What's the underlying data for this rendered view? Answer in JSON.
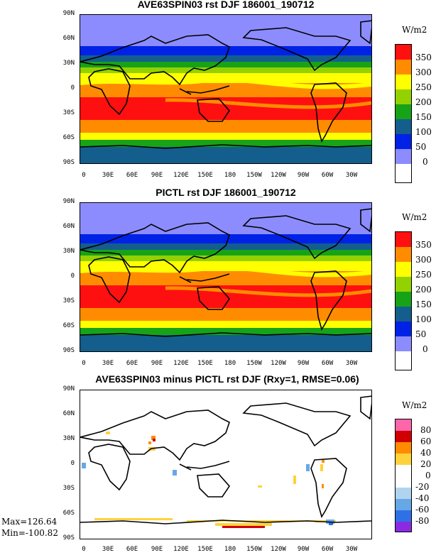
{
  "panels": [
    {
      "title": "AVE63SPIN03 rst DJF 186001_190712",
      "units": "W/m2",
      "lat_labels": [
        "90N",
        "60N",
        "30N",
        "0",
        "30S",
        "60S",
        "90S"
      ],
      "lon_labels": [
        "0",
        "30E",
        "60E",
        "90E",
        "120E",
        "150E",
        "180",
        "150W",
        "120W",
        "90W",
        "60W",
        "30W"
      ],
      "legend": {
        "labels": [
          "350",
          "300",
          "250",
          "200",
          "150",
          "100",
          "50",
          "0"
        ],
        "colors": [
          "#ffffff",
          "#8c8cff",
          "#0022e6",
          "#135e8c",
          "#17a317",
          "#93d200",
          "#ffff00",
          "#ff8c00",
          "#ff1010"
        ]
      }
    },
    {
      "title": "PICTL rst DJF 186001_190712",
      "units": "W/m2",
      "lat_labels": [
        "90N",
        "60N",
        "30N",
        "0",
        "30S",
        "60S",
        "90S"
      ],
      "lon_labels": [
        "0",
        "30E",
        "60E",
        "90E",
        "120E",
        "150E",
        "180",
        "150W",
        "120W",
        "90W",
        "60W",
        "30W"
      ],
      "legend": {
        "labels": [
          "350",
          "300",
          "250",
          "200",
          "150",
          "100",
          "50",
          "0"
        ],
        "colors": [
          "#ffffff",
          "#8c8cff",
          "#0022e6",
          "#135e8c",
          "#17a317",
          "#93d200",
          "#ffff00",
          "#ff8c00",
          "#ff1010"
        ]
      }
    },
    {
      "title": "AVE63SPIN03 minus PICTL rst DJF (Rxy=1, RMSE=0.06)",
      "units": "W/m2",
      "lat_labels": [
        "90N",
        "60N",
        "30N",
        "0",
        "30S",
        "60S",
        "90S"
      ],
      "lon_labels": [
        "0",
        "30E",
        "60E",
        "90E",
        "120E",
        "150E",
        "180",
        "150W",
        "120W",
        "90W",
        "60W",
        "30W"
      ],
      "legend": {
        "labels": [
          "80",
          "60",
          "40",
          "20",
          "0",
          "-20",
          "-40",
          "-60",
          "-80"
        ],
        "colors": [
          "#8a2be2",
          "#3070e6",
          "#66a8e6",
          "#b0d4f0",
          "#ffffff",
          "#ffffff",
          "#ffd23c",
          "#ff8c00",
          "#d10000",
          "#ff66aa"
        ]
      },
      "max_label": "Max=126.64",
      "min_label": "Min=-100.82"
    }
  ],
  "colors": {
    "band_colors": [
      "#8c8cff",
      "#0022e6",
      "#135e8c",
      "#17a317",
      "#93d200",
      "#ffff00",
      "#ff8c00",
      "#ff1010"
    ]
  }
}
